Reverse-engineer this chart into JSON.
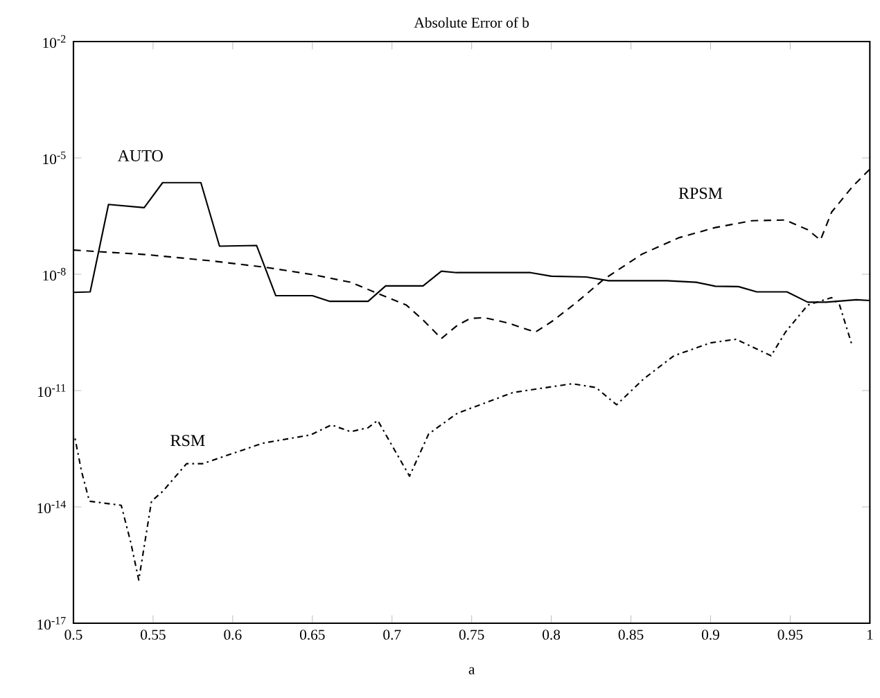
{
  "chart_data": {
    "type": "line",
    "title": "Absolute Error of b",
    "xlabel": "a",
    "log": "y",
    "grid": false,
    "marker": "none",
    "xlim": [
      0.5,
      1
    ],
    "xticks": [
      0.5,
      0.55,
      0.6,
      0.65,
      0.7,
      0.75,
      0.8,
      0.85,
      0.9,
      0.95,
      1
    ],
    "ylim": [
      1e-17,
      0.01
    ],
    "yticks": [
      {
        "value": 1e-17,
        "label": "10$^{-17}$"
      },
      {
        "value": 1e-14,
        "label": "10$^{-14}$"
      },
      {
        "value": 1e-11,
        "label": "10$^{-11}$"
      },
      {
        "value": 1e-08,
        "label": "10$^{-8}$"
      },
      {
        "value": 1e-05,
        "label": "10$^{-5}$"
      },
      {
        "value": 0.01,
        "label": "10$^{-2}$"
      }
    ],
    "series": [
      {
        "name": "AUTO",
        "color": "#000000",
        "line_style": "solid",
        "x": [
          0.5,
          0.5105,
          0.522,
          0.5444,
          0.556,
          0.58,
          0.5917,
          0.615,
          0.627,
          0.65,
          0.661,
          0.685,
          0.696,
          0.7195,
          0.731,
          0.7405,
          0.787,
          0.8,
          0.822,
          0.836,
          0.8725,
          0.891,
          0.903,
          0.9175,
          0.929,
          0.948,
          0.961,
          0.9725,
          0.9915,
          1.0
        ],
        "values": [
          3.4e-09,
          3.5e-09,
          6.3e-07,
          5.2e-07,
          2.3e-06,
          2.3e-06,
          5.3e-08,
          5.5e-08,
          2.8e-09,
          2.8e-09,
          2e-09,
          2e-09,
          5e-09,
          5e-09,
          1.2e-08,
          1.1e-08,
          1.1e-08,
          8.9e-09,
          8.5e-09,
          6.8e-09,
          6.8e-09,
          6.2e-09,
          4.9e-09,
          4.8e-09,
          3.5e-09,
          3.5e-09,
          1.9e-09,
          1.9e-09,
          2.2e-09,
          2.1e-09
        ]
      },
      {
        "name": "RPSM",
        "color": "#000000",
        "line_style": "dashed",
        "x": [
          0.5,
          0.546,
          0.587,
          0.621,
          0.65,
          0.674,
          0.691,
          0.709,
          0.72,
          0.731,
          0.741,
          0.749,
          0.758,
          0.773,
          0.79,
          0.801,
          0.816,
          0.833,
          0.857,
          0.88,
          0.903,
          0.926,
          0.947,
          0.961,
          0.969,
          0.976,
          0.989,
          1.0
        ],
        "values": [
          4.2e-08,
          3.2e-08,
          2.2e-08,
          1.5e-08,
          9.8e-09,
          6.2e-09,
          3.2e-09,
          1.6e-09,
          6.3e-10,
          2.2e-10,
          4.8e-10,
          7.2e-10,
          7.6e-10,
          5.5e-10,
          3.2e-10,
          6.3e-10,
          1.9e-09,
          7.4e-09,
          3.3e-08,
          8.7e-08,
          1.6e-07,
          2.4e-07,
          2.5e-07,
          1.4e-07,
          7.6e-08,
          4e-07,
          1.8e-06,
          5.1e-06
        ]
      },
      {
        "name": "RSM",
        "color": "#000000",
        "line_style": "dotted",
        "x": [
          0.501,
          0.505,
          0.51,
          0.53,
          0.536,
          0.541,
          0.549,
          0.556,
          0.571,
          0.581,
          0.619,
          0.649,
          0.662,
          0.674,
          0.685,
          0.691,
          0.711,
          0.723,
          0.741,
          0.776,
          0.813,
          0.828,
          0.841,
          0.858,
          0.877,
          0.9,
          0.916,
          0.938,
          0.947,
          0.961,
          0.976,
          0.981,
          0.989
        ],
        "values": [
          5.8e-13,
          8.5e-14,
          1.4e-14,
          1.1e-14,
          1.2e-15,
          1.3e-16,
          1.4e-14,
          2.5e-14,
          1.3e-13,
          1.3e-13,
          4.4e-13,
          7.2e-13,
          1.3e-12,
          8.7e-13,
          1.1e-12,
          1.7e-12,
          6.2e-14,
          7.6e-13,
          2.6e-12,
          8.9e-12,
          1.5e-11,
          1.2e-11,
          4.3e-12,
          2e-11,
          7.9e-11,
          1.7e-10,
          2.1e-10,
          7.9e-11,
          3.2e-10,
          1.6e-09,
          2.5e-09,
          1.6e-09,
          1.4e-10
        ]
      }
    ]
  }
}
